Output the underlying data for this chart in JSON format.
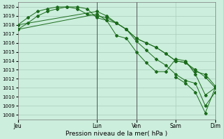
{
  "bg_color": "#cceedd",
  "grid_color": "#aaccbb",
  "line_color": "#1a6b1a",
  "marker_color": "#1a6b1a",
  "ylabel_values": [
    1008,
    1009,
    1010,
    1011,
    1012,
    1013,
    1014,
    1015,
    1016,
    1017,
    1018,
    1019,
    1020
  ],
  "ylim": [
    1007.5,
    1020.5
  ],
  "xlabel": "Pression niveau de la mer( hPa )",
  "total_hours": 120,
  "xtick_labels": [
    "Jeu",
    "Lun",
    "Ven",
    "Sam",
    "Dim"
  ],
  "xtick_positions": [
    0,
    48,
    72,
    96,
    120
  ],
  "vline_positions": [
    48,
    72
  ],
  "series1_x": [
    0,
    6,
    12,
    18,
    24,
    30,
    36,
    42,
    48,
    54,
    60,
    66,
    72,
    78,
    84,
    90,
    96,
    102,
    108,
    114,
    120
  ],
  "series1_y": [
    1017.5,
    1018.2,
    1019.0,
    1019.5,
    1019.8,
    1020.0,
    1020.0,
    1019.8,
    1018.8,
    1018.5,
    1018.2,
    1017.5,
    1016.5,
    1016.0,
    1015.5,
    1014.8,
    1014.0,
    1013.8,
    1013.0,
    1012.2,
    1011.0
  ],
  "series2_x": [
    0,
    6,
    12,
    18,
    24,
    30,
    36,
    42,
    48,
    54,
    60,
    66,
    72,
    78,
    84,
    90,
    96,
    102,
    108,
    114,
    120
  ],
  "series2_y": [
    1018.0,
    1018.8,
    1019.5,
    1019.8,
    1020.0,
    1020.0,
    1019.8,
    1019.2,
    1019.0,
    1018.8,
    1018.2,
    1017.5,
    1016.5,
    1016.0,
    1015.5,
    1014.8,
    1014.0,
    1013.8,
    1012.8,
    1012.5,
    1011.2
  ],
  "series3_x": [
    0,
    48,
    54,
    60,
    66,
    72,
    78,
    84,
    90,
    96,
    102,
    108,
    114,
    120
  ],
  "series3_y": [
    1017.5,
    1019.2,
    1018.5,
    1016.8,
    1016.5,
    1015.0,
    1013.8,
    1012.8,
    1012.8,
    1014.2,
    1014.0,
    1012.5,
    1010.2,
    1011.0
  ],
  "series4_x": [
    0,
    48,
    54,
    60,
    66,
    72,
    78,
    84,
    90,
    96,
    102,
    108,
    114,
    120
  ],
  "series4_y": [
    1018.0,
    1019.5,
    1019.0,
    1018.2,
    1017.5,
    1016.2,
    1015.2,
    1014.2,
    1013.5,
    1012.5,
    1011.8,
    1011.5,
    1009.0,
    1010.5
  ],
  "series5_x": [
    96,
    102,
    108,
    114,
    120
  ],
  "series5_y": [
    1012.2,
    1011.5,
    1010.5,
    1008.2,
    1011.0
  ]
}
